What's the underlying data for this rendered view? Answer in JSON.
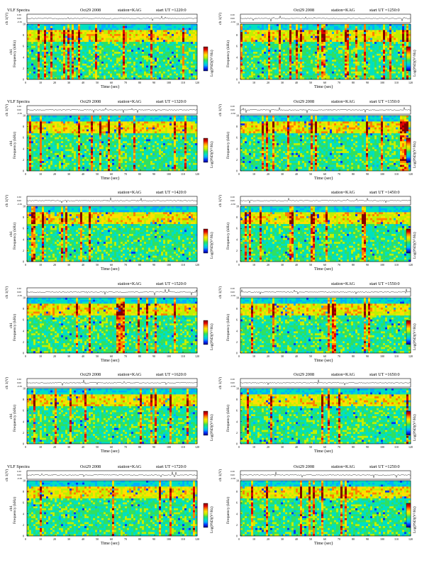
{
  "panels": [
    {
      "label": "VLF Spectra",
      "date": "Oct29 2008",
      "station": "station=KAG",
      "start": "start  UT  =1220:0",
      "xmax": 120,
      "ch_label": "ch 1(V)",
      "freq_label": "ch1",
      "freq_unit": "Frequency  (kHz)",
      "time_label": "Time  (sec)",
      "cbar_label": "Log(PSD)(V²/Hz)"
    },
    {
      "label": "",
      "date": "Oct29 2008",
      "station": "station=KAG",
      "start": "start  UT  =1250:0",
      "xmax": 120,
      "ch_label": "ch 1(V)",
      "freq_label": "",
      "freq_unit": "Frequency  (kHz)",
      "time_label": "Time  (sec)",
      "cbar_label": "Log(PSD)(V²/Hz)"
    },
    {
      "label": "VLF Spectra",
      "date": "Oct29 2008",
      "station": "station=KAG",
      "start": "start  UT  =1320:0",
      "xmax": 120,
      "ch_label": "ch 1(V)",
      "freq_label": "ch1",
      "freq_unit": "Frequency  (kHz)",
      "time_label": "Time  (sec)",
      "cbar_label": "Log(PSD)(V²/Hz)"
    },
    {
      "label": "",
      "date": "Oct29 2008",
      "station": "station=KAG",
      "start": "start  UT  =1350:0",
      "xmax": 120,
      "ch_label": "ch 1(V)",
      "freq_label": "",
      "freq_unit": "Frequency  (kHz)",
      "time_label": "Time  (sec)",
      "cbar_label": "Log(PSD)(V²/Hz)"
    },
    {
      "label": "",
      "date": "",
      "station": "station=KAG",
      "start": "start  UT  =1420:0",
      "xmax": 120,
      "ch_label": "ch 1(V)",
      "freq_label": "ch1",
      "freq_unit": "Frequency  (kHz)",
      "time_label": "Time  (sec)",
      "cbar_label": "Log(PSD)(V²/Hz)"
    },
    {
      "label": "",
      "date": "",
      "station": "station=KAG",
      "start": "start  UT  =1450:0",
      "xmax": 120,
      "ch_label": "ch 1(V)",
      "freq_label": "",
      "freq_unit": "Frequency  (kHz)",
      "time_label": "Time  (sec)",
      "cbar_label": "Log(PSD)(V²/Hz)"
    },
    {
      "label": "",
      "date": "",
      "station": "station=KAG",
      "start": "start  UT  =1520:0",
      "xmax": 120,
      "ch_label": "ch 1(V)",
      "freq_label": "ch1",
      "freq_unit": "Frequency  (kHz)",
      "time_label": "Time  (sec)",
      "cbar_label": "Log(PSD)(V²/Hz)"
    },
    {
      "label": "",
      "date": "",
      "station": "station=KAG",
      "start": "start  UT  =1550:0",
      "xmax": 120,
      "ch_label": "ch 1(V)",
      "freq_label": "",
      "freq_unit": "Frequency  (kHz)",
      "time_label": "Time  (sec)",
      "cbar_label": "Log(PSD)(V²/Hz)"
    },
    {
      "label": "",
      "date": "Oct29 2008",
      "station": "station=KAG",
      "start": "start  UT  =1620:0",
      "xmax": 120,
      "ch_label": "ch 1(V)",
      "freq_label": "ch1",
      "freq_unit": "Frequency  (kHz)",
      "time_label": "Time  (sec)",
      "cbar_label": "Log(PSD)(V²/Hz)"
    },
    {
      "label": "",
      "date": "Oct29 2008",
      "station": "station=KAG",
      "start": "start  UT  =1650:0",
      "xmax": 120,
      "ch_label": "ch 1(V)",
      "freq_label": "",
      "freq_unit": "Frequency  (kHz)",
      "time_label": "Time  (sec)",
      "cbar_label": "Log(PSD)(V²/Hz)"
    },
    {
      "label": "VLF Spectra",
      "date": "Oct29 2008",
      "station": "station=KAG",
      "start": "start  UT  =1720:0",
      "xmax": 120,
      "ch_label": "ch 1(V)",
      "freq_label": "ch1",
      "freq_unit": "Frequency  (kHz)",
      "time_label": "Time  (sec)",
      "cbar_label": "Log(PSD)(V²/Hz)"
    },
    {
      "label": "",
      "date": "Oct29 2008",
      "station": "station=KAG",
      "start": "start  UT  =1250:0",
      "xmax": 120,
      "ch_label": "ch 1(V)",
      "freq_label": "",
      "freq_unit": "Frequency  (kHz)",
      "time_label": "Time  (sec)",
      "cbar_label": "Log(PSD)(V²/Hz)"
    }
  ],
  "chart_data": {
    "type": "heatmap",
    "x_ticks": [
      0,
      10,
      20,
      30,
      40,
      50,
      60,
      70,
      80,
      90,
      100,
      110,
      120
    ],
    "y_ticks": [
      0,
      2,
      4,
      6,
      8,
      10
    ],
    "ch_ticks": [
      "0.30",
      "0.00",
      "-0.30"
    ],
    "xlabel": "Time  (sec)",
    "ylabel": "Frequency  (kHz)",
    "xlim": [
      0,
      120
    ],
    "ylim": [
      0,
      10
    ],
    "colorscale": [
      "#000080",
      "#0030ff",
      "#00b0ff",
      "#00e0c0",
      "#30e060",
      "#c0f000",
      "#ffe000",
      "#ff8000",
      "#e00000",
      "#800000"
    ]
  }
}
